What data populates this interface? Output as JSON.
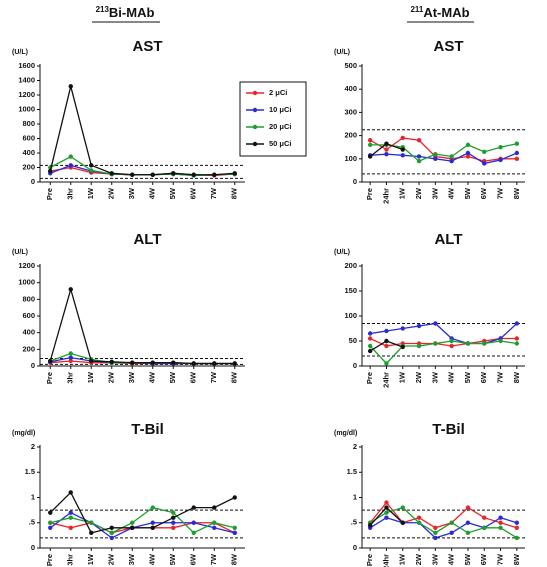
{
  "columns": [
    {
      "isotope": "213",
      "name": "Bi-MAb"
    },
    {
      "isotope": "211",
      "name": "At-MAb"
    }
  ],
  "chart_data": [
    {
      "type": "line",
      "title": "AST",
      "y_label": "(U/L)",
      "categories": [
        "Pre",
        "3hr",
        "1W",
        "2W",
        "3W",
        "4W",
        "5W",
        "6W",
        "7W",
        "8W"
      ],
      "ylim": [
        0,
        1600
      ],
      "yticks": [
        0,
        200,
        400,
        600,
        800,
        1000,
        1200,
        1400,
        1600
      ],
      "reference_lines": [
        50,
        230
      ],
      "series": [
        {
          "name": "2 μCi",
          "color": "#e8262a",
          "values": [
            150,
            200,
            130,
            110,
            100,
            100,
            120,
            100,
            90,
            110
          ]
        },
        {
          "name": "10 μCi",
          "color": "#2b2bd6",
          "values": [
            120,
            230,
            150,
            110,
            100,
            100,
            110,
            90,
            100,
            110
          ]
        },
        {
          "name": "20 μCi",
          "color": "#1e9e2e",
          "values": [
            200,
            350,
            160,
            110,
            100,
            100,
            110,
            90,
            100,
            110
          ]
        },
        {
          "name": "50 μCi",
          "color": "#111111",
          "values": [
            150,
            1320,
            230,
            120,
            100,
            100,
            120,
            100,
            100,
            120
          ]
        }
      ]
    },
    {
      "type": "line",
      "title": "AST",
      "y_label": "(U/L)",
      "categories": [
        "Pre",
        "24hr",
        "1W",
        "2W",
        "3W",
        "4W",
        "5W",
        "6W",
        "7W",
        "8W"
      ],
      "ylim": [
        0,
        500
      ],
      "yticks": [
        0,
        100,
        200,
        300,
        400,
        500
      ],
      "reference_lines": [
        35,
        225
      ],
      "series": [
        {
          "name": "2 μCi",
          "color": "#e8262a",
          "values": [
            180,
            140,
            190,
            180,
            110,
            100,
            110,
            90,
            100,
            100
          ]
        },
        {
          "name": "10 μCi",
          "color": "#2b2bd6",
          "values": [
            115,
            120,
            115,
            110,
            100,
            90,
            125,
            80,
            95,
            125
          ]
        },
        {
          "name": "20 μCi",
          "color": "#1e9e2e",
          "values": [
            160,
            160,
            150,
            90,
            120,
            110,
            160,
            130,
            150,
            165
          ]
        },
        {
          "name": "50 μCi",
          "color": "#111111",
          "values": [
            110,
            165,
            140,
            null,
            null,
            null,
            null,
            null,
            null,
            null
          ]
        }
      ]
    },
    {
      "type": "line",
      "title": "ALT",
      "y_label": "(U/L)",
      "categories": [
        "Pre",
        "3hr",
        "1W",
        "2W",
        "3W",
        "4W",
        "5W",
        "6W",
        "7W",
        "8W"
      ],
      "ylim": [
        0,
        1200
      ],
      "yticks": [
        0,
        200,
        400,
        600,
        800,
        1000,
        1200
      ],
      "reference_lines": [
        20,
        90
      ],
      "series": [
        {
          "name": "2 μCi",
          "color": "#e8262a",
          "values": [
            40,
            60,
            40,
            40,
            30,
            30,
            30,
            30,
            30,
            30
          ]
        },
        {
          "name": "10 μCi",
          "color": "#2b2bd6",
          "values": [
            50,
            100,
            60,
            40,
            40,
            30,
            30,
            30,
            30,
            30
          ]
        },
        {
          "name": "20 μCi",
          "color": "#1e9e2e",
          "values": [
            60,
            150,
            80,
            40,
            40,
            40,
            40,
            30,
            30,
            30
          ]
        },
        {
          "name": "50 μCi",
          "color": "#111111",
          "values": [
            60,
            920,
            60,
            50,
            40,
            40,
            40,
            30,
            30,
            30
          ]
        }
      ]
    },
    {
      "type": "line",
      "title": "ALT",
      "y_label": "(U/L)",
      "categories": [
        "Pre",
        "24hr",
        "1W",
        "2W",
        "3W",
        "4W",
        "5W",
        "6W",
        "7W",
        "8W"
      ],
      "ylim": [
        0,
        200
      ],
      "yticks": [
        0,
        50,
        100,
        150,
        200
      ],
      "reference_lines": [
        20,
        85
      ],
      "series": [
        {
          "name": "2 μCi",
          "color": "#e8262a",
          "values": [
            55,
            40,
            45,
            45,
            45,
            40,
            45,
            50,
            55,
            55
          ]
        },
        {
          "name": "10 μCi",
          "color": "#2b2bd6",
          "values": [
            65,
            70,
            75,
            80,
            85,
            55,
            45,
            45,
            55,
            85
          ]
        },
        {
          "name": "20 μCi",
          "color": "#1e9e2e",
          "values": [
            40,
            5,
            40,
            40,
            45,
            50,
            45,
            45,
            50,
            45
          ]
        },
        {
          "name": "50 μCi",
          "color": "#111111",
          "values": [
            30,
            50,
            38,
            null,
            null,
            null,
            null,
            null,
            null,
            null
          ]
        }
      ]
    },
    {
      "type": "line",
      "title": "T-Bil",
      "y_label": "(mg/dl)",
      "categories": [
        "Pre",
        "3hr",
        "1W",
        "2W",
        "3W",
        "4W",
        "5W",
        "6W",
        "7W",
        "8W"
      ],
      "ylim": [
        0,
        2
      ],
      "yticks": [
        0,
        {
          "value": 0.5,
          "label": ".5"
        },
        1,
        1.5,
        2
      ],
      "reference_lines": [
        0.2,
        0.75
      ],
      "series": [
        {
          "name": "2 μCi",
          "color": "#e8262a",
          "values": [
            0.5,
            0.4,
            0.5,
            0.3,
            0.4,
            0.4,
            0.4,
            0.5,
            0.5,
            0.3
          ]
        },
        {
          "name": "10 μCi",
          "color": "#2b2bd6",
          "values": [
            0.4,
            0.7,
            0.5,
            0.2,
            0.4,
            0.5,
            0.5,
            0.5,
            0.4,
            0.3
          ]
        },
        {
          "name": "20 μCi",
          "color": "#1e9e2e",
          "values": [
            0.5,
            0.6,
            0.5,
            0.3,
            0.5,
            0.8,
            0.7,
            0.3,
            0.5,
            0.4
          ]
        },
        {
          "name": "50 μCi",
          "color": "#111111",
          "values": [
            0.7,
            1.1,
            0.3,
            0.4,
            0.4,
            0.4,
            0.6,
            0.8,
            0.8,
            1.0
          ]
        }
      ]
    },
    {
      "type": "line",
      "title": "T-Bil",
      "y_label": "(mg/dl)",
      "categories": [
        "Pre",
        "24hr",
        "1W",
        "2W",
        "3W",
        "4W",
        "5W",
        "6W",
        "7W",
        "8W"
      ],
      "ylim": [
        0,
        2
      ],
      "yticks": [
        0,
        {
          "value": 0.5,
          "label": ".5"
        },
        1,
        1.5,
        2
      ],
      "reference_lines": [
        0.2,
        0.75
      ],
      "series": [
        {
          "name": "2 μCi",
          "color": "#e8262a",
          "values": [
            0.5,
            0.9,
            0.5,
            0.6,
            0.4,
            0.5,
            0.8,
            0.6,
            0.5,
            0.4
          ]
        },
        {
          "name": "10 μCi",
          "color": "#2b2bd6",
          "values": [
            0.4,
            0.6,
            0.5,
            0.5,
            0.2,
            0.3,
            0.5,
            0.4,
            0.6,
            0.5
          ]
        },
        {
          "name": "20 μCi",
          "color": "#1e9e2e",
          "values": [
            0.5,
            0.7,
            0.8,
            0.5,
            0.3,
            0.5,
            0.3,
            0.4,
            0.4,
            0.2
          ]
        },
        {
          "name": "50 μCi",
          "color": "#111111",
          "values": [
            0.45,
            0.8,
            0.5,
            null,
            null,
            null,
            null,
            null,
            null,
            null
          ]
        }
      ]
    }
  ]
}
